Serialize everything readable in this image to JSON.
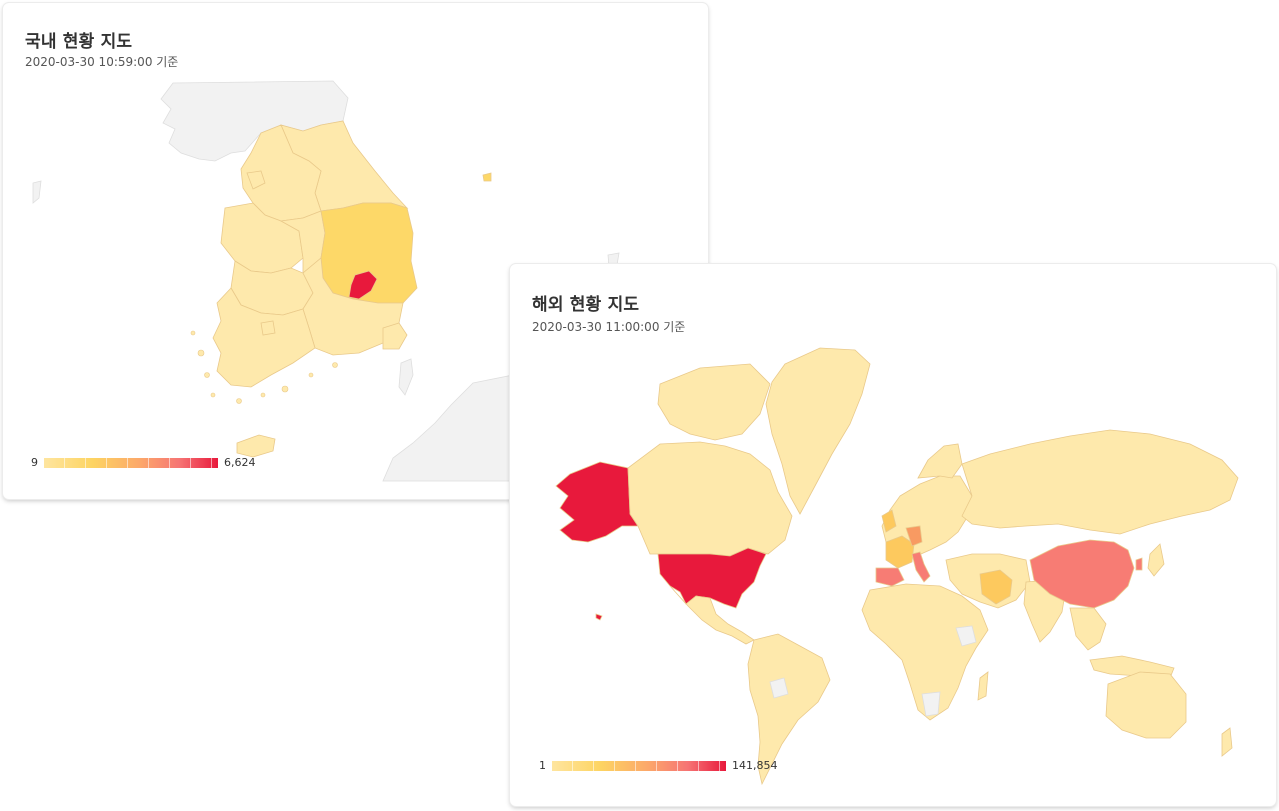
{
  "domestic": {
    "title": "국내 현황 지도",
    "timestamp": "2020-03-30 10:59:00 기준",
    "legend": {
      "min": "9",
      "max": "6,624"
    },
    "colors": {
      "low": "#fee8a8",
      "mid": "#fdd868",
      "high": "#e8193c"
    }
  },
  "global": {
    "title": "해외 현황 지도",
    "timestamp": "2020-03-30 11:00:00 기준",
    "legend": {
      "min": "1",
      "max": "141,854"
    },
    "colors": {
      "low": "#fee9ac",
      "mid": "#fdc95e",
      "orange": "#f89a62",
      "salmon": "#f77c74",
      "high": "#e8193c",
      "nodata": "#efefef"
    }
  }
}
